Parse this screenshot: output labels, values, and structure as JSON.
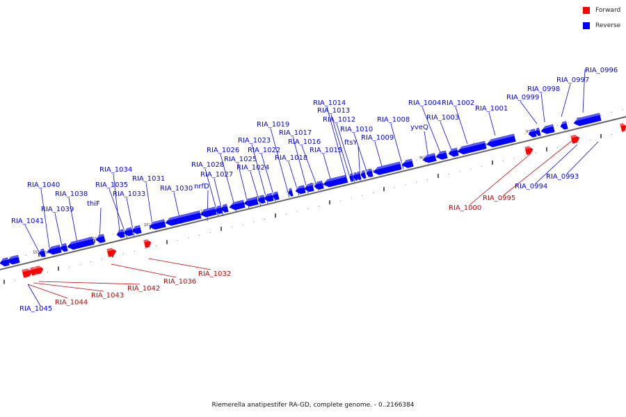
{
  "legend": {
    "forward": {
      "label": "Forward",
      "color": "#ff0000"
    },
    "reverse": {
      "label": "Reverse",
      "color": "#0000ff"
    }
  },
  "caption": "Riemerella anatipestifer RA-GD, complete genome. - 0..2166384",
  "scale_ticks": [
    "970 kbp",
    "975 kbp",
    "980 kbp",
    "985 kbp",
    "990 kbp",
    "995 kbp",
    "1000 kbp",
    "1005 kbp",
    "1010 kbp",
    "1015 kbp",
    "1020 kbp"
  ],
  "reverse_genes": [
    "RIA_0996",
    "RIA_0997",
    "RIA_0998",
    "RIA_0999",
    "RIA_1001",
    "RIA_1002",
    "RIA_1003",
    "RIA_1004",
    "yveQ",
    "RIA_1008",
    "RIA_1009",
    "RIA_1010",
    "ftsY",
    "RIA_1012",
    "RIA_1013",
    "RIA_1014",
    "RIA_1015",
    "RIA_1016",
    "RIA_1017",
    "RIA_1018",
    "RIA_1019",
    "RIA_1022",
    "RIA_1023",
    "RIA_1024",
    "RIA_1025",
    "RIA_1026",
    "RIA_1027",
    "RIA_1028",
    "nrfD",
    "RIA_1030",
    "RIA_1031",
    "RIA_1033",
    "RIA_1034",
    "RIA_1035",
    "thiF",
    "RIA_1038",
    "RIA_1039",
    "RIA_1040",
    "RIA_1041",
    "RIA_0994",
    "RIA_0993",
    "RIA_1045"
  ],
  "forward_genes": [
    "RIA_1000",
    "RIA_0995",
    "RIA_1032",
    "RIA_1036",
    "RIA_1042",
    "RIA_1043",
    "RIA_1044"
  ]
}
